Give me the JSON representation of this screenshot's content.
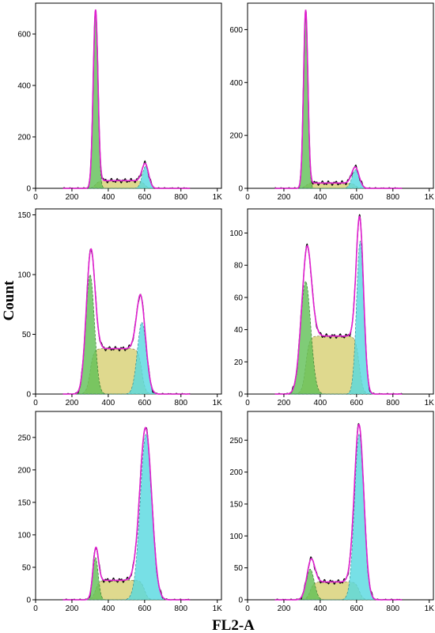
{
  "figure": {
    "ylabel": "Count",
    "xlabel": "FL2-A"
  },
  "colors": {
    "g1": "#5fbf55",
    "s_phase": "#d9d27a",
    "g2": "#55d8e0",
    "fit": "#e020d0",
    "data": "#000000",
    "background": "#ffffff"
  },
  "chart_data": [
    {
      "type": "area",
      "xlabel": "FL2-A",
      "ylabel": "Count",
      "xticks": [
        "0",
        "200",
        "400",
        "600",
        "800",
        "1K"
      ],
      "xlim": [
        0,
        1023
      ],
      "yticks": [
        0,
        200,
        400,
        600
      ],
      "ylim": [
        0,
        720
      ],
      "g1": {
        "mean": 330,
        "sd": 13,
        "height": 680
      },
      "s": {
        "start": 330,
        "end": 600,
        "level": 30
      },
      "g2": {
        "mean": 605,
        "sd": 18,
        "height": 85
      }
    },
    {
      "type": "area",
      "xlabel": "FL2-A",
      "ylabel": "Count",
      "xticks": [
        "0",
        "200",
        "400",
        "600",
        "800",
        "1K"
      ],
      "xlim": [
        0,
        1023
      ],
      "yticks": [
        0,
        200,
        400,
        600
      ],
      "ylim": [
        0,
        700
      ],
      "g1": {
        "mean": 320,
        "sd": 12,
        "height": 665
      },
      "s": {
        "start": 320,
        "end": 595,
        "level": 20
      },
      "g2": {
        "mean": 595,
        "sd": 20,
        "height": 70
      }
    },
    {
      "type": "area",
      "xlabel": "FL2-A",
      "ylabel": "Count",
      "xticks": [
        "0",
        "200",
        "400",
        "600",
        "800",
        "1K"
      ],
      "xlim": [
        0,
        1023
      ],
      "yticks": [
        0,
        50,
        100,
        150
      ],
      "ylim": [
        0,
        155
      ],
      "g1": {
        "mean": 300,
        "sd": 24,
        "height": 100
      },
      "s": {
        "start": 300,
        "end": 585,
        "level": 38
      },
      "g2": {
        "mean": 585,
        "sd": 25,
        "height": 60
      }
    },
    {
      "type": "area",
      "xlabel": "FL2-A",
      "ylabel": "Count",
      "xticks": [
        "0",
        "200",
        "400",
        "600",
        "800",
        "1K"
      ],
      "xlim": [
        0,
        1023
      ],
      "yticks": [
        0,
        20,
        40,
        60,
        80,
        100
      ],
      "ylim": [
        0,
        115
      ],
      "g1": {
        "mean": 320,
        "sd": 28,
        "height": 70
      },
      "s": {
        "start": 320,
        "end": 615,
        "level": 36
      },
      "g2": {
        "mean": 620,
        "sd": 20,
        "height": 95
      }
    },
    {
      "type": "area",
      "xlabel": "FL2-A",
      "ylabel": "Count",
      "xticks": [
        "0",
        "200",
        "400",
        "600",
        "800",
        "1K"
      ],
      "xlim": [
        0,
        1023
      ],
      "yticks": [
        0,
        50,
        100,
        150,
        200,
        250
      ],
      "ylim": [
        0,
        290
      ],
      "g1": {
        "mean": 330,
        "sd": 15,
        "height": 65
      },
      "s": {
        "start": 330,
        "end": 600,
        "level": 30
      },
      "g2": {
        "mean": 608,
        "sd": 32,
        "height": 255
      }
    },
    {
      "type": "area",
      "xlabel": "FL2-A",
      "ylabel": "Count",
      "xticks": [
        "0",
        "200",
        "400",
        "600",
        "800",
        "1K"
      ],
      "xlim": [
        0,
        1023
      ],
      "yticks": [
        0,
        50,
        100,
        150,
        200,
        250
      ],
      "ylim": [
        0,
        295
      ],
      "g1": {
        "mean": 345,
        "sd": 22,
        "height": 48
      },
      "s": {
        "start": 345,
        "end": 615,
        "level": 28
      },
      "g2": {
        "mean": 615,
        "sd": 26,
        "height": 260
      }
    }
  ]
}
